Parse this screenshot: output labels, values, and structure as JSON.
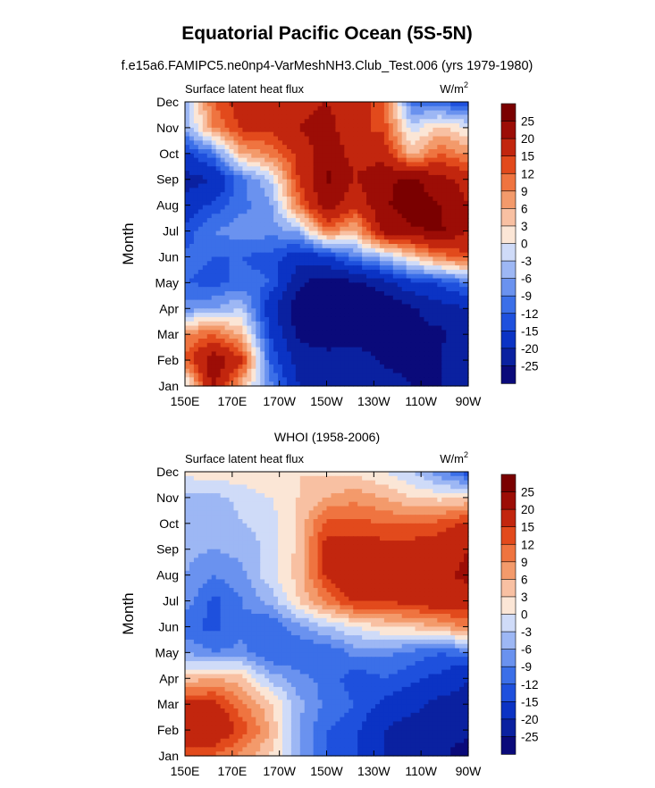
{
  "title": "Equatorial Pacific Ocean (5S-5N)",
  "subtitle": "f.e15a6.FAMIPC5.ne0np4-VarMeshNH3.Club_Test.006 (yrs 1979-1980)",
  "chart_data": [
    {
      "type": "heatmap",
      "name": "model",
      "left_label": "Surface latent heat flux",
      "right_label": "W/m",
      "right_label_sup": "2",
      "ylabel": "Month",
      "x_ticks": [
        "150E",
        "170E",
        "170W",
        "150W",
        "130W",
        "110W",
        "90W"
      ],
      "x_range_deg_east": [
        150,
        270
      ],
      "y_ticks": [
        "Jan",
        "Feb",
        "Mar",
        "Apr",
        "May",
        "Jun",
        "Jul",
        "Aug",
        "Sep",
        "Oct",
        "Nov",
        "Dec"
      ],
      "colorbar_labels": [
        "25",
        "20",
        "15",
        "12",
        "9",
        "6",
        "3",
        "0",
        "-3",
        "-6",
        "-9",
        "-12",
        "-15",
        "-20",
        "-25"
      ],
      "levels": [
        -25,
        -20,
        -15,
        -12,
        -9,
        -6,
        -3,
        0,
        3,
        6,
        9,
        12,
        15,
        20,
        25
      ],
      "x_lon": [
        150,
        162,
        174,
        186,
        198,
        210,
        222,
        234,
        246,
        258,
        270
      ],
      "z": [
        [
          -3,
          22,
          5,
          -8,
          -20,
          -22,
          -20,
          -22,
          -25,
          -25,
          -20
        ],
        [
          12,
          24,
          16,
          -12,
          -22,
          -23,
          -22,
          -26,
          -27,
          -25,
          -20
        ],
        [
          9,
          12,
          5,
          -15,
          -26,
          -28,
          -28,
          -28,
          -26,
          -26,
          -22
        ],
        [
          -8,
          -6,
          -3,
          -18,
          -28,
          -30,
          -30,
          -30,
          -26,
          -22,
          -20
        ],
        [
          -12,
          -13,
          -11,
          -12,
          -24,
          -28,
          -26,
          -22,
          -16,
          -14,
          -10
        ],
        [
          -11,
          -12,
          -12,
          -13,
          -18,
          -16,
          -9,
          -4,
          3,
          10,
          14
        ],
        [
          -14,
          -9,
          -7,
          -8,
          -5,
          10,
          5,
          22,
          24,
          26,
          20
        ],
        [
          -18,
          -14,
          -10,
          -7,
          10,
          24,
          16,
          24,
          28,
          25,
          20
        ],
        [
          -22,
          -20,
          -10,
          -3,
          15,
          26,
          20,
          24,
          26,
          22,
          18
        ],
        [
          -16,
          -10,
          6,
          10,
          16,
          24,
          18,
          18,
          5,
          12,
          8
        ],
        [
          -6,
          9,
          16,
          16,
          20,
          22,
          16,
          14,
          -2,
          4,
          0
        ],
        [
          -6,
          12,
          17,
          16,
          18,
          20,
          18,
          12,
          -10,
          -12,
          -15
        ]
      ]
    },
    {
      "type": "heatmap",
      "name": "obs",
      "panel_title": "WHOI (1958-2006)",
      "left_label": "Surface latent heat flux",
      "right_label": "W/m",
      "right_label_sup": "2",
      "ylabel": "Month",
      "x_ticks": [
        "150E",
        "170E",
        "170W",
        "150W",
        "130W",
        "110W",
        "90W"
      ],
      "x_range_deg_east": [
        150,
        270
      ],
      "y_ticks": [
        "Jan",
        "Feb",
        "Mar",
        "Apr",
        "May",
        "Jun",
        "Jul",
        "Aug",
        "Sep",
        "Oct",
        "Nov",
        "Dec"
      ],
      "colorbar_labels": [
        "25",
        "20",
        "15",
        "12",
        "9",
        "6",
        "3",
        "0",
        "-3",
        "-6",
        "-9",
        "-12",
        "-15",
        "-20",
        "-25"
      ],
      "levels": [
        -25,
        -20,
        -15,
        -12,
        -9,
        -6,
        -3,
        0,
        3,
        6,
        9,
        12,
        15,
        20,
        25
      ],
      "x_lon": [
        150,
        162,
        174,
        186,
        198,
        210,
        222,
        234,
        246,
        258,
        270
      ],
      "z": [
        [
          14,
          12,
          8,
          3,
          -5,
          -12,
          -15,
          -20,
          -23,
          -24,
          -27
        ],
        [
          18,
          20,
          14,
          6,
          -6,
          -12,
          -14,
          -20,
          -23,
          -24,
          -24
        ],
        [
          16,
          17,
          10,
          4,
          -5,
          -10,
          -12,
          -16,
          -18,
          -22,
          -22
        ],
        [
          4,
          6,
          4,
          -4,
          -8,
          -10,
          -14,
          -12,
          -14,
          -16,
          -20
        ],
        [
          -6,
          -9,
          -8,
          -12,
          -12,
          -12,
          -8,
          -8,
          -10,
          -12,
          -10
        ],
        [
          -11,
          -13,
          -10,
          -12,
          -7,
          -3,
          0,
          3,
          4,
          6,
          10
        ],
        [
          -7,
          -13,
          -9,
          -5,
          3,
          10,
          16,
          15,
          17,
          19,
          18
        ],
        [
          -6,
          -9,
          -7,
          -1,
          4,
          16,
          19,
          19,
          17,
          19,
          21
        ],
        [
          -5,
          -6,
          -5,
          -2,
          4,
          17,
          17,
          17,
          17,
          18,
          20
        ],
        [
          -4,
          -6,
          -3,
          -2,
          4,
          13,
          13,
          12,
          12,
          13,
          16
        ],
        [
          -4,
          -4,
          -2,
          0,
          3,
          6,
          8,
          6,
          3,
          2,
          3
        ],
        [
          1,
          2,
          2,
          3,
          3,
          2,
          2,
          0,
          -3,
          -8,
          -14
        ]
      ]
    }
  ],
  "colors": {
    "palette": [
      "#0a0a7a",
      "#0a21a0",
      "#0b33c4",
      "#1e50dd",
      "#3b6fe8",
      "#6a92ef",
      "#9db7f4",
      "#cfdbf8",
      "#fbe6d6",
      "#f8c0a2",
      "#f39a6b",
      "#ef7440",
      "#e24a1c",
      "#c2260e",
      "#9c0d06",
      "#7a0000"
    ]
  }
}
